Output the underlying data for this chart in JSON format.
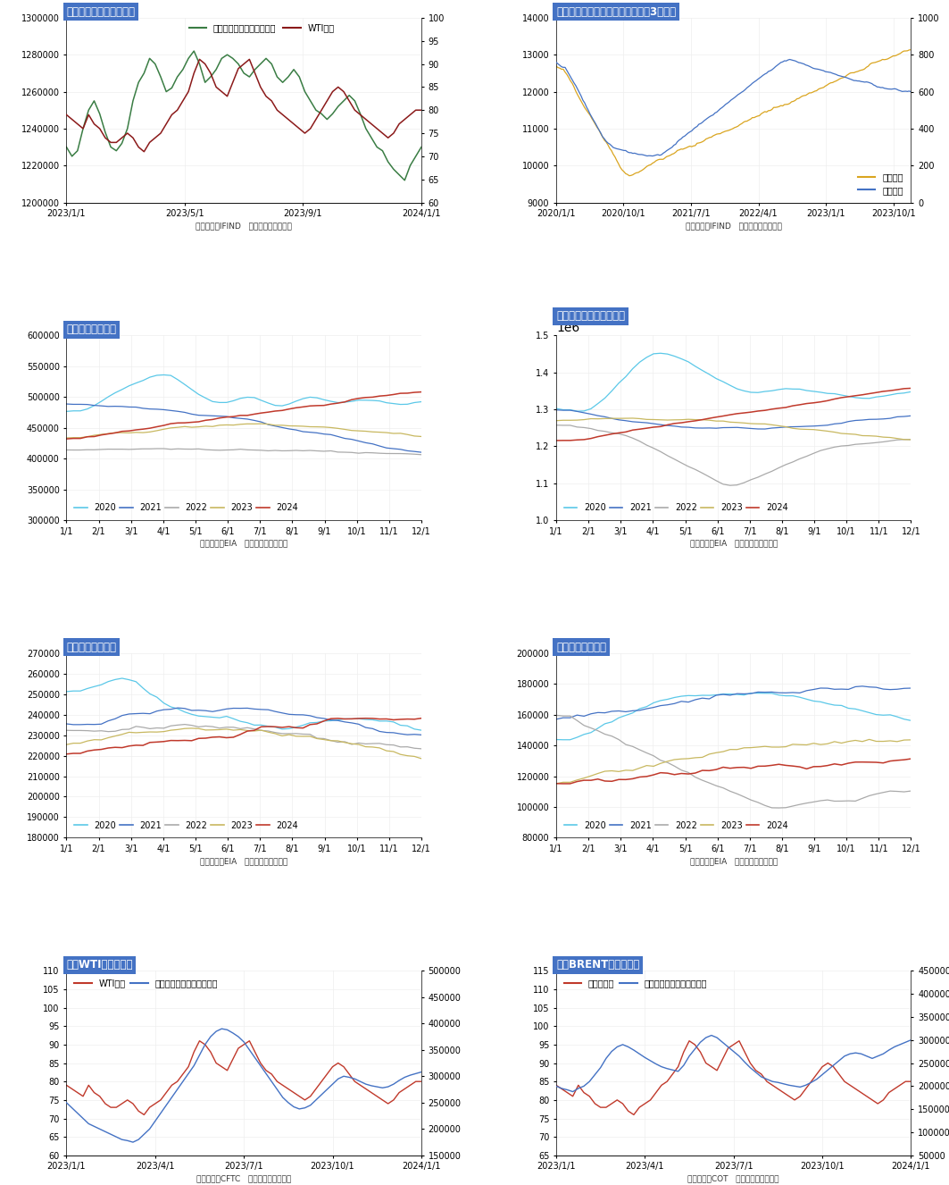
{
  "fig_title_1": "图：原油价格与石油库存",
  "fig_title_2": "图：美国原油产量与钻井数（前置3个月）",
  "fig_title_3": "图：美国原油库存",
  "fig_title_4": "图：美国全口径库存变动",
  "fig_title_5": "图：美国汽油库存",
  "fig_title_6": "图：美国柴油库存",
  "fig_title_7": "图：WTI基金净多头",
  "fig_title_8": "图：BRENT基金净多头",
  "source_1": "数据来源：IFIND   海通期货投资咨询部",
  "source_2": "数据来源：IFIND   海通期货投资咨询部",
  "source_3": "数据来源：EIA   海通期货投资咨询部",
  "source_4": "数据来源：EIA   海通期货投资咨询部",
  "source_5": "数据来源：EIA   海通期货投资咨询部",
  "source_6": "数据来源：EIA   海通期货投资咨询部",
  "source_7": "数据来源：CFTC   海通期货投资咨询部",
  "source_8": "数据来源：COT   海通期货投资咨询部",
  "title_bg_color": "#4472c4",
  "separator_color": "#4472c4",
  "background_color": "white",
  "colors": {
    "green": "#3a7d44",
    "dark_red": "#8b1a1a",
    "red": "#c0392b",
    "blue": "#4472c4",
    "cyan": "#5bc8e8",
    "gold": "#DAA520",
    "light_gray": "#aaaaaa",
    "khaki": "#c8b860"
  },
  "legend_2020": "2020",
  "legend_2021": "2021",
  "legend_2022": "2022",
  "legend_2023": "2023",
  "legend_2024": "2024",
  "legend_inv": "石油总计（不含战略）库存",
  "legend_wti": "WTI油价",
  "legend_prod": "原油产量",
  "legend_rig": "石油钻机",
  "legend_wti7": "WTI油价",
  "legend_net7": "基金净多单（期货和期权）",
  "legend_brent": "布伦特原油",
  "legend_net8": "基金净多单（期货和期权）"
}
